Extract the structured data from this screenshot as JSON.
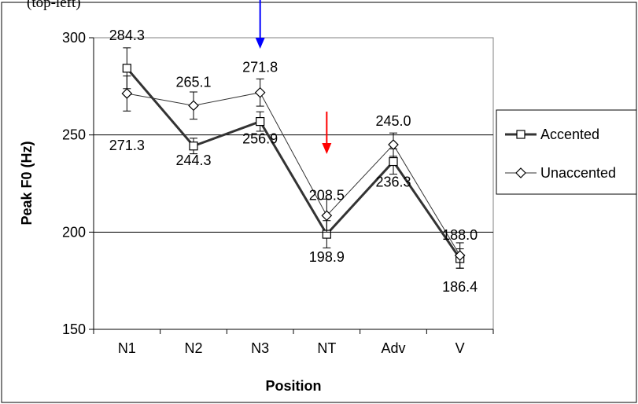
{
  "caption_fragment": "(top-left)",
  "chart_data": {
    "type": "line",
    "title": "",
    "xlabel": "Position",
    "ylabel": "Peak F0 (Hz)",
    "ylim": [
      150,
      300
    ],
    "yticks": [
      150,
      200,
      250,
      300
    ],
    "grid": "horizontal",
    "legend_position": "right",
    "categories": [
      "N1",
      "N2",
      "N3",
      "NT",
      "Adv",
      "V"
    ],
    "series": [
      {
        "name": "Accented",
        "marker": "square",
        "line": "thick",
        "values": [
          284.3,
          244.3,
          256.9,
          198.9,
          236.3,
          186.4
        ],
        "errors": [
          10.5,
          4,
          5,
          7,
          6.5,
          5
        ],
        "labels": [
          "284.3",
          "244.3",
          "256.9",
          "198.9",
          "236.3",
          "186.4"
        ]
      },
      {
        "name": "Unaccented",
        "marker": "diamond",
        "line": "thin",
        "values": [
          271.3,
          265.1,
          271.8,
          208.5,
          245.0,
          188.0
        ],
        "errors": [
          9,
          7,
          7,
          8.5,
          6,
          6.5
        ],
        "labels": [
          "271.3",
          "265.1",
          "271.8",
          "208.5",
          "245.0",
          "188.0"
        ]
      }
    ],
    "annotations": [
      {
        "type": "arrow",
        "at_category": "N3",
        "color": "#0000ff"
      },
      {
        "type": "arrow",
        "at_category": "NT",
        "color": "#ff0000"
      }
    ],
    "colors": {
      "line": "#333333",
      "grid": "#000000",
      "plot_border": "#808080"
    }
  }
}
